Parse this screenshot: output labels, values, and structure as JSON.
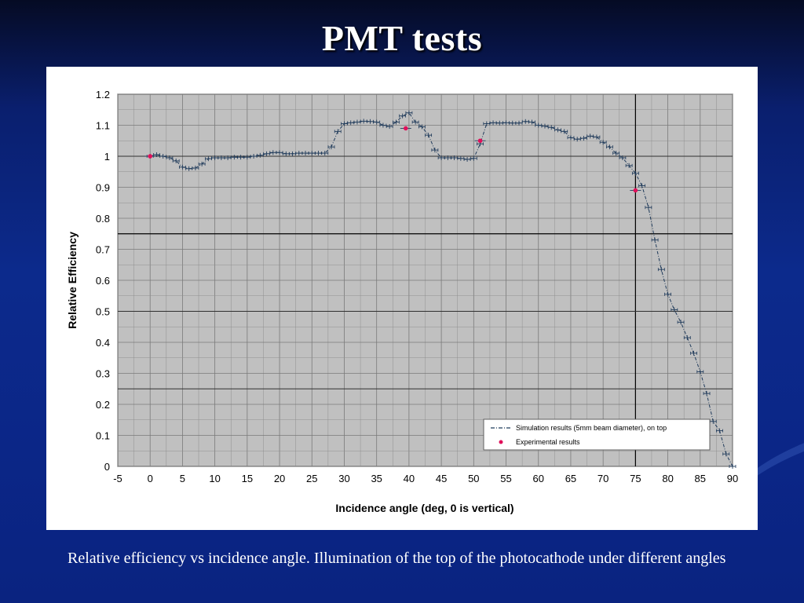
{
  "slide": {
    "title": "PMT tests",
    "caption": "Relative efficiency vs incidence angle. Illumination of the top of the photocathode under different angles"
  },
  "colors": {
    "background": "#0c2a8c",
    "plot_area": "#c0c0c0",
    "grid": "#000000",
    "simulation": "#1f3a5a",
    "experimental": "#e0105a"
  },
  "chart_data": {
    "type": "scatter",
    "xlabel": "Incidence angle (deg, 0 is vertical)",
    "ylabel": "Relative Efficiency",
    "xlim": [
      -5,
      90
    ],
    "ylim": [
      0,
      1.2
    ],
    "xticks": [
      -5,
      0,
      5,
      10,
      15,
      20,
      25,
      30,
      35,
      40,
      45,
      50,
      55,
      60,
      65,
      70,
      75,
      80,
      85,
      90
    ],
    "yticks": [
      0,
      0.1,
      0.2,
      0.3,
      0.4,
      0.5,
      0.6,
      0.7,
      0.8,
      0.9,
      1,
      1.1,
      1.2
    ],
    "grid": true,
    "legend_position": "bottom-right",
    "series": [
      {
        "name": "Simulation results (5mm beam diameter), on top",
        "style": "dash-dot line with error bars",
        "x": [
          0,
          1,
          2,
          3,
          4,
          5,
          6,
          7,
          8,
          9,
          10,
          11,
          12,
          13,
          14,
          15,
          16,
          17,
          18,
          19,
          20,
          21,
          22,
          23,
          24,
          25,
          26,
          27,
          28,
          29,
          30,
          31,
          32,
          33,
          34,
          35,
          36,
          37,
          38,
          39,
          40,
          41,
          42,
          43,
          44,
          45,
          46,
          47,
          48,
          49,
          50,
          51,
          52,
          53,
          54,
          55,
          56,
          57,
          58,
          59,
          60,
          61,
          62,
          63,
          64,
          65,
          66,
          67,
          68,
          69,
          70,
          71,
          72,
          73,
          74,
          75,
          76,
          77,
          78,
          79,
          80,
          81,
          82,
          83,
          84,
          85,
          86,
          87,
          88,
          89,
          90
        ],
        "y": [
          1.0,
          1.005,
          1.0,
          0.995,
          0.985,
          0.965,
          0.96,
          0.962,
          0.975,
          0.992,
          0.995,
          0.995,
          0.995,
          0.997,
          0.997,
          0.997,
          1.0,
          1.003,
          1.008,
          1.012,
          1.012,
          1.008,
          1.008,
          1.01,
          1.01,
          1.01,
          1.01,
          1.01,
          1.03,
          1.08,
          1.105,
          1.108,
          1.11,
          1.113,
          1.112,
          1.11,
          1.1,
          1.096,
          1.11,
          1.13,
          1.14,
          1.11,
          1.095,
          1.068,
          1.02,
          0.995,
          0.995,
          0.995,
          0.993,
          0.99,
          0.993,
          1.04,
          1.105,
          1.108,
          1.107,
          1.108,
          1.107,
          1.107,
          1.112,
          1.11,
          1.1,
          1.097,
          1.093,
          1.085,
          1.08,
          1.06,
          1.055,
          1.058,
          1.065,
          1.062,
          1.045,
          1.03,
          1.01,
          0.995,
          0.97,
          0.945,
          0.905,
          0.835,
          0.73,
          0.635,
          0.555,
          0.505,
          0.465,
          0.415,
          0.365,
          0.305,
          0.235,
          0.145,
          0.115,
          0.04,
          0.0
        ]
      },
      {
        "name": "Experimental results",
        "style": "markers",
        "x": [
          0,
          39.5,
          51,
          75
        ],
        "y": [
          1.0,
          1.09,
          1.05,
          0.89
        ]
      }
    ]
  }
}
